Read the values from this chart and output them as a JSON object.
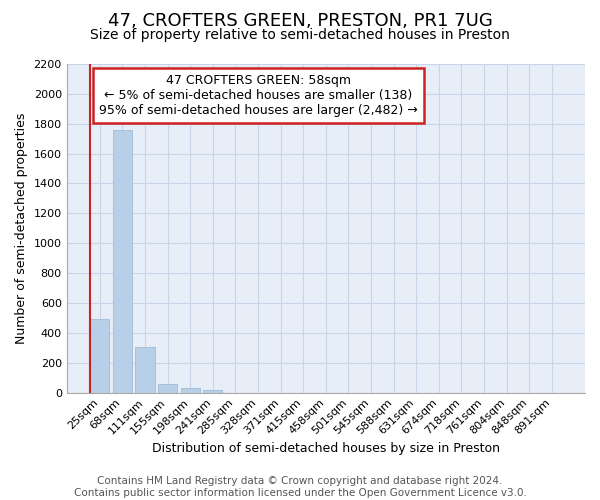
{
  "title": "47, CROFTERS GREEN, PRESTON, PR1 7UG",
  "subtitle": "Size of property relative to semi-detached houses in Preston",
  "xlabel": "Distribution of semi-detached houses by size in Preston",
  "ylabel": "Number of semi-detached properties",
  "footer_line1": "Contains HM Land Registry data © Crown copyright and database right 2024.",
  "footer_line2": "Contains public sector information licensed under the Open Government Licence v3.0.",
  "annotation_line1": "47 CROFTERS GREEN: 58sqm",
  "annotation_line2": "← 5% of semi-detached houses are smaller (138)",
  "annotation_line3": "95% of semi-detached houses are larger (2,482) →",
  "bar_labels": [
    "25sqm",
    "68sqm",
    "111sqm",
    "155sqm",
    "198sqm",
    "241sqm",
    "285sqm",
    "328sqm",
    "371sqm",
    "415sqm",
    "458sqm",
    "501sqm",
    "545sqm",
    "588sqm",
    "631sqm",
    "674sqm",
    "718sqm",
    "761sqm",
    "804sqm",
    "848sqm",
    "891sqm"
  ],
  "bar_values": [
    490,
    1760,
    305,
    55,
    28,
    18,
    0,
    0,
    0,
    0,
    0,
    0,
    0,
    0,
    0,
    0,
    0,
    0,
    0,
    0,
    0
  ],
  "bar_color": "#b8cfe8",
  "bar_edge_color": "#a0bcd8",
  "highlight_bar_index": 0,
  "red_line_color": "#cc2222",
  "ylim": [
    0,
    2200
  ],
  "yticks": [
    0,
    200,
    400,
    600,
    800,
    1000,
    1200,
    1400,
    1600,
    1800,
    2000,
    2200
  ],
  "grid_color": "#c8d4e8",
  "background_color": "#e8eef8",
  "annotation_box_facecolor": "white",
  "annotation_box_edgecolor": "#cc2222",
  "title_fontsize": 13,
  "subtitle_fontsize": 10,
  "axis_label_fontsize": 9,
  "tick_fontsize": 8,
  "annotation_fontsize": 9,
  "footer_fontsize": 7.5
}
